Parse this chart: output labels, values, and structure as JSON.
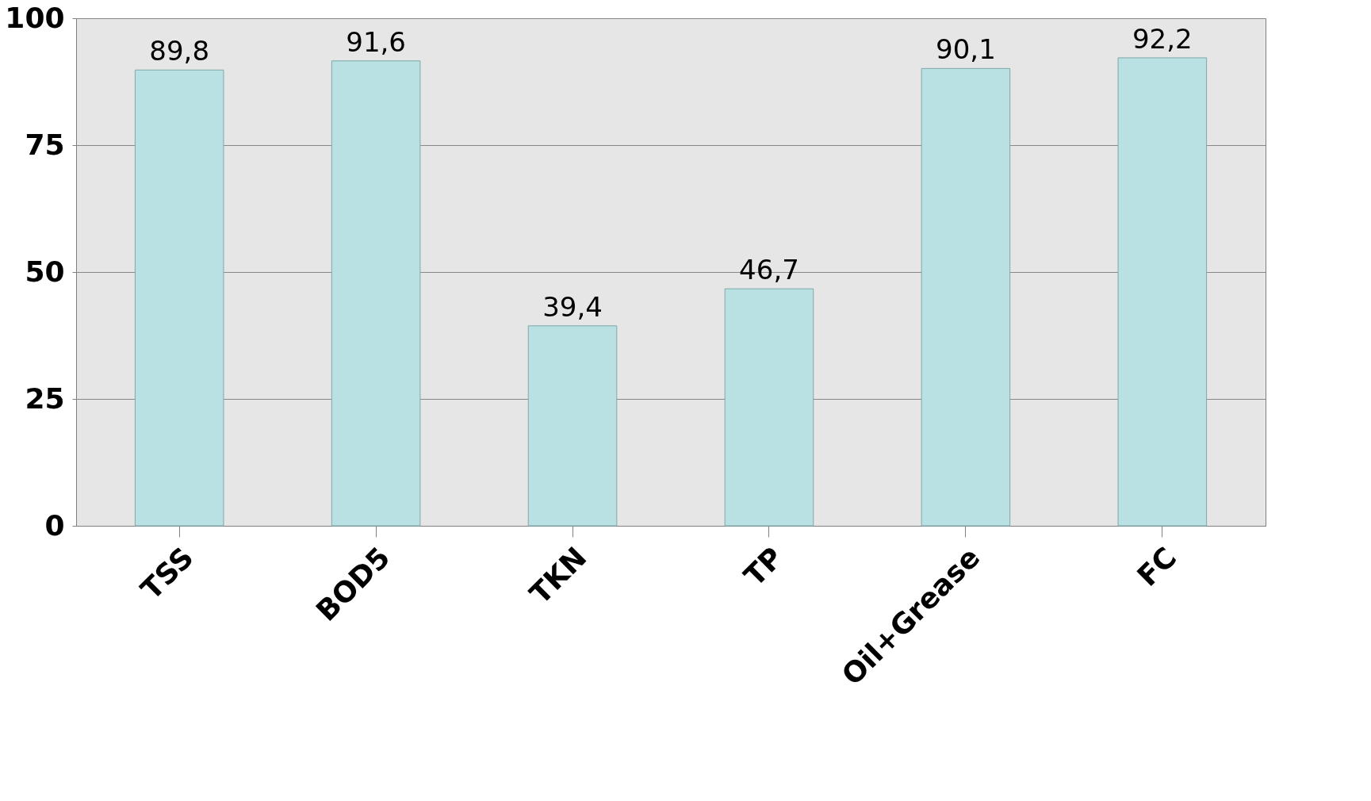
{
  "chart_data": {
    "type": "bar",
    "categories": [
      "TSS",
      "BOD5",
      "TKN",
      "TP",
      "Oil+Grease",
      "FC"
    ],
    "values": [
      89.8,
      91.6,
      39.4,
      46.7,
      90.1,
      92.2
    ],
    "color": "#b9e0e2",
    "value_labels": [
      "89,8",
      "91,6",
      "39,4",
      "46,7",
      "90,1",
      "92,2"
    ],
    "ylim": [
      0,
      100
    ],
    "yticks": [
      0,
      25,
      50,
      75,
      100
    ],
    "grid": "y"
  }
}
